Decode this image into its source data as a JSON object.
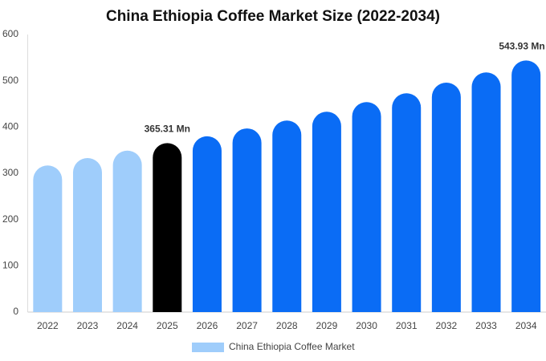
{
  "chart_data": {
    "type": "bar",
    "title": "China Ethiopia Coffee Market Size (2022-2034)",
    "categories": [
      "2022",
      "2023",
      "2024",
      "2025",
      "2026",
      "2027",
      "2028",
      "2029",
      "2030",
      "2031",
      "2032",
      "2033",
      "2034"
    ],
    "series": [
      {
        "name": "China Ethiopia Coffee Market",
        "color": "#9fcdfb",
        "values": [
          317,
          333,
          349,
          365.31,
          380,
          397,
          414,
          433,
          454,
          473,
          496,
          518,
          543.93
        ],
        "value_labels": [
          null,
          null,
          null,
          "365.31 Mn",
          null,
          null,
          null,
          null,
          null,
          null,
          null,
          null,
          "543.93 Mn"
        ],
        "colors": [
          "#9fcdfb",
          "#9fcdfb",
          "#9fcdfb",
          "#000000",
          "#0a6cf5",
          "#0a6cf5",
          "#0a6cf5",
          "#0a6cf5",
          "#0a6cf5",
          "#0a6cf5",
          "#0a6cf5",
          "#0a6cf5",
          "#0a6cf5"
        ]
      }
    ],
    "ylim": [
      0,
      600
    ],
    "yticks": [
      0,
      100,
      200,
      300,
      400,
      500,
      600
    ],
    "grid": false,
    "legend": "bottom"
  }
}
